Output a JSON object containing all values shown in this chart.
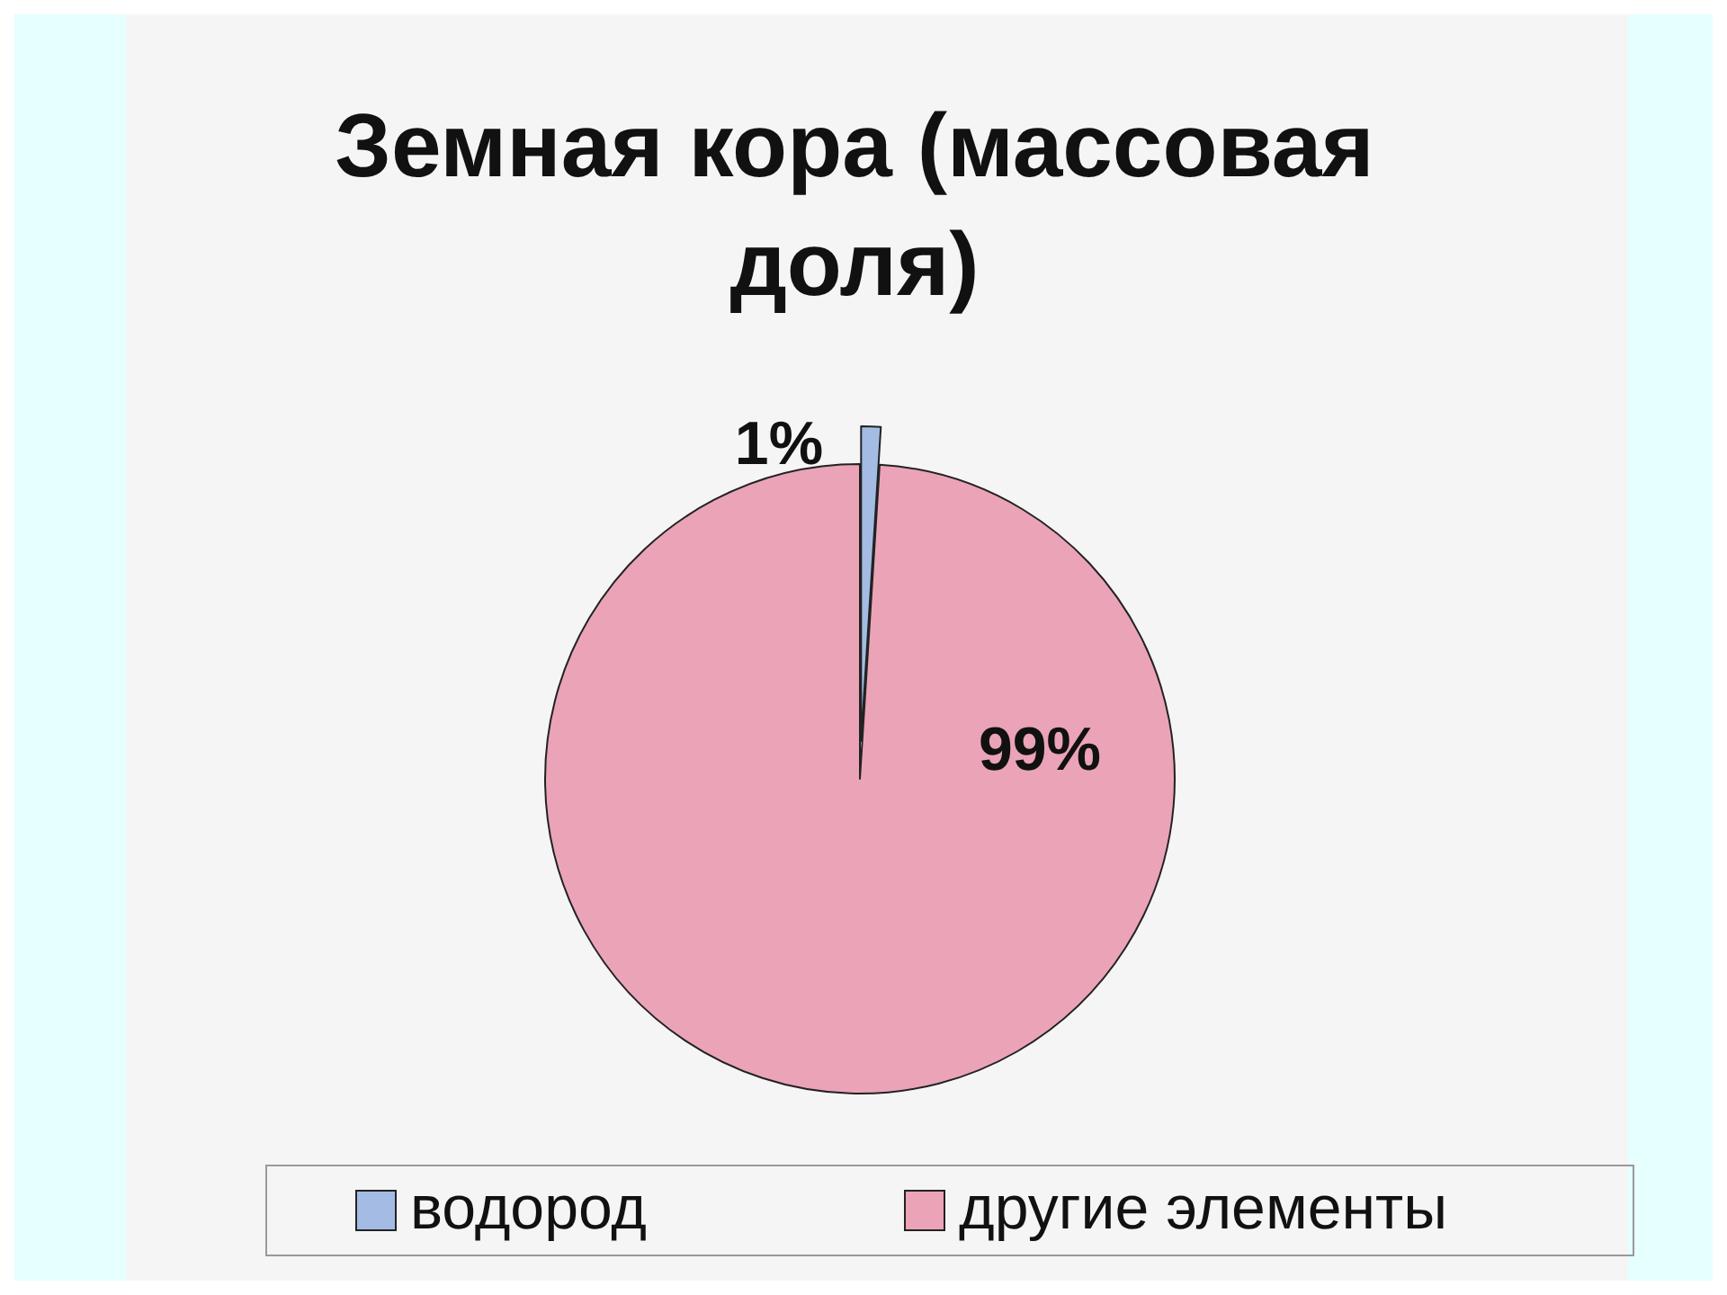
{
  "chart_data": {
    "type": "pie",
    "title": "Земная кора (массовая доля)",
    "categories": [
      "водород",
      "другие элементы"
    ],
    "values": [
      1,
      99
    ],
    "colors": [
      "#a4bce4",
      "#eba3b8"
    ],
    "value_labels": [
      "1%",
      "99%"
    ],
    "legend": "bottom"
  }
}
